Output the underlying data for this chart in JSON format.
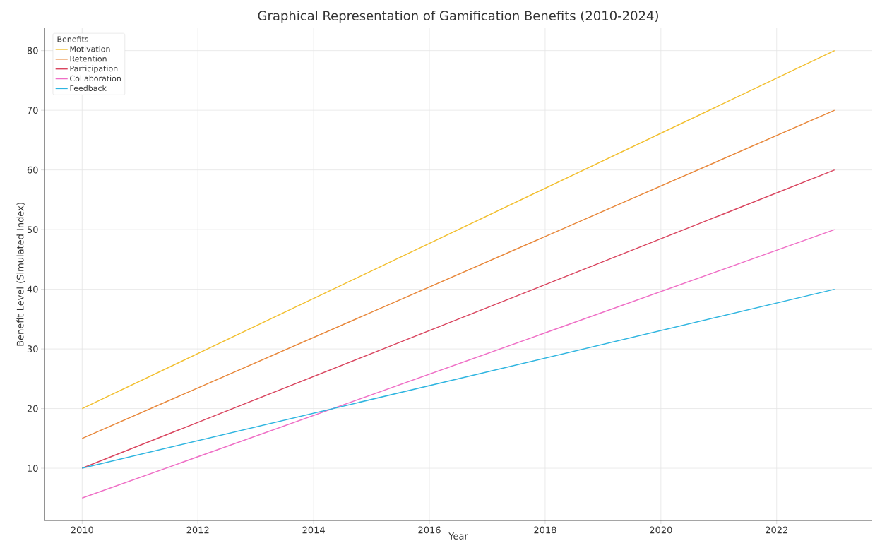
{
  "chart_data": {
    "type": "line",
    "title": "Graphical Representation of Gamification Benefits (2010-2024)",
    "xlabel": "Year",
    "ylabel": "Benefit Level (Simulated Index)",
    "legend_title": "Benefits",
    "x": [
      2010,
      2023
    ],
    "series": [
      {
        "name": "Motivation",
        "color": "#f2bf2e",
        "values": [
          20,
          80
        ]
      },
      {
        "name": "Retention",
        "color": "#e8873a",
        "values": [
          15,
          70
        ]
      },
      {
        "name": "Participation",
        "color": "#d9455f",
        "values": [
          10,
          60
        ]
      },
      {
        "name": "Collaboration",
        "color": "#ef6fc6",
        "values": [
          5,
          50
        ]
      },
      {
        "name": "Feedback",
        "color": "#2fb5e0",
        "values": [
          10,
          40
        ]
      }
    ],
    "xlim": [
      2009.35,
      2023.65
    ],
    "ylim": [
      1.25,
      83.75
    ],
    "xticks": [
      2010,
      2012,
      2014,
      2016,
      2018,
      2020,
      2022
    ],
    "yticks": [
      10,
      20,
      30,
      40,
      50,
      60,
      70,
      80
    ],
    "grid": true,
    "legend": "top left",
    "marker": "none",
    "line_style": "solid"
  }
}
